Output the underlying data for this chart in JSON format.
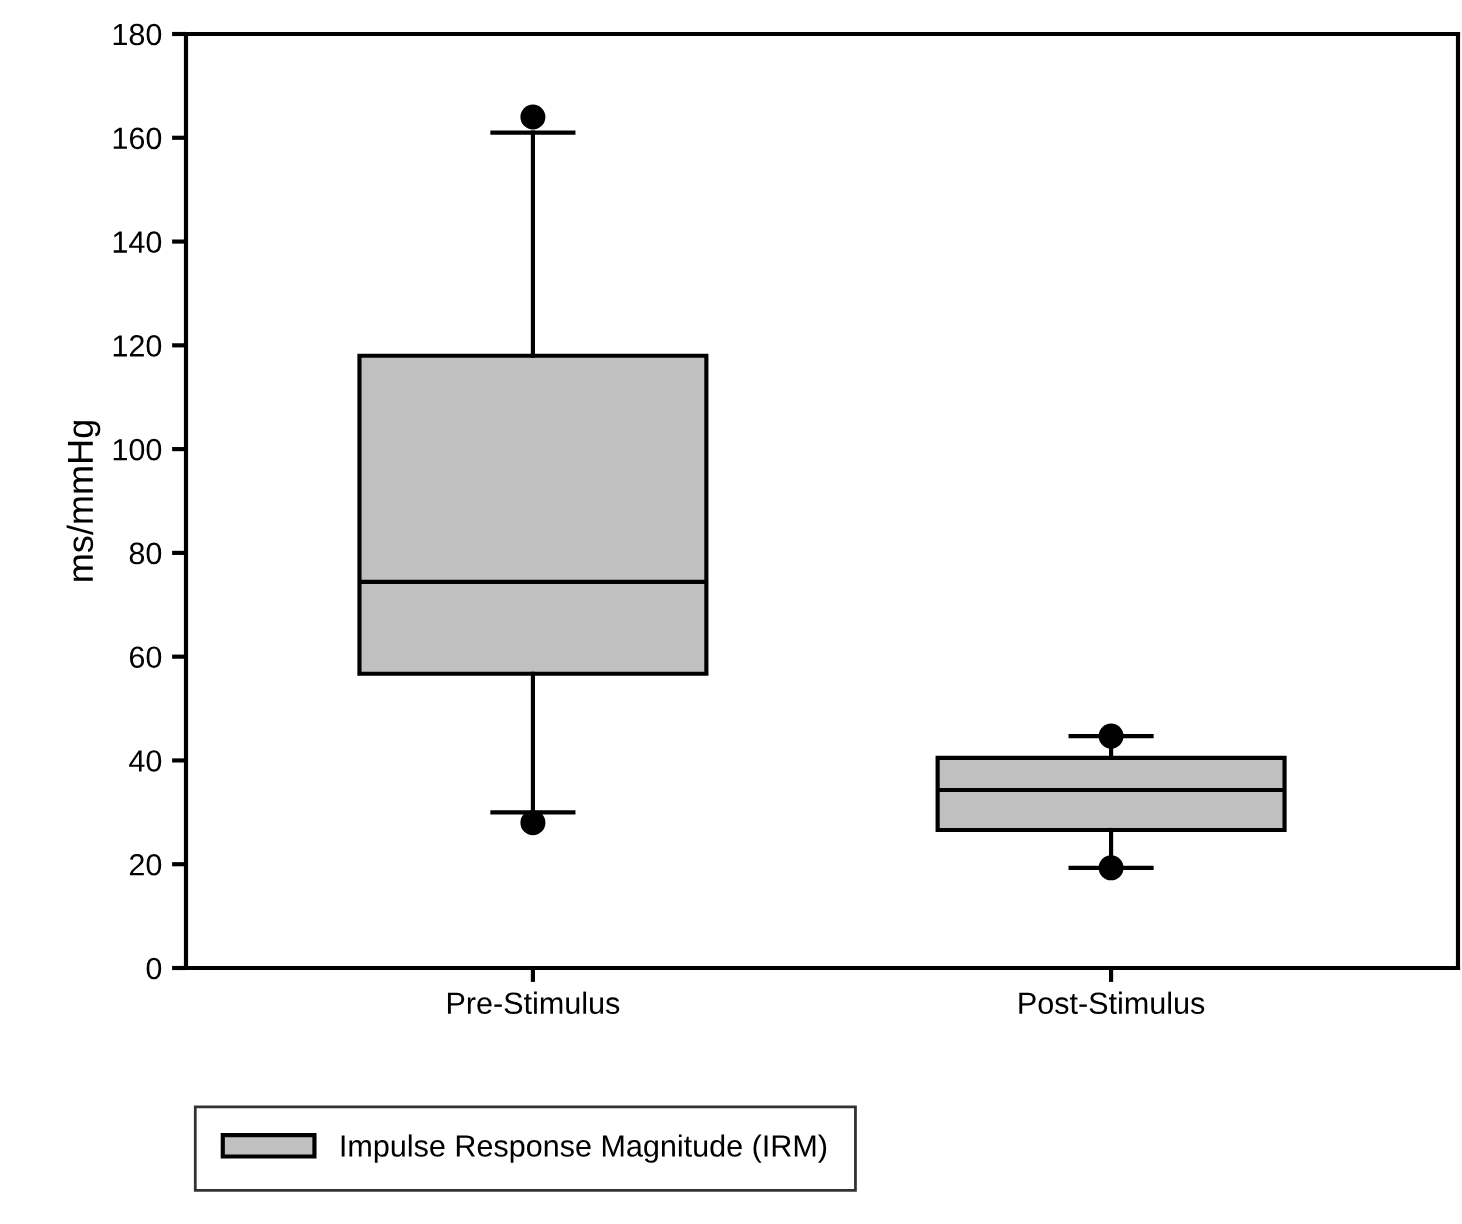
{
  "chart_data": {
    "type": "box",
    "ylabel": "ms/mmHg",
    "categories": [
      "Pre-Stimulus",
      "Post-Stimulus"
    ],
    "series": [
      {
        "name": "Impulse Response Magnitude (IRM)",
        "color": "#c0c0c0",
        "boxes": [
          {
            "low": 30,
            "q1": 56.7,
            "median": 74.4,
            "q3": 118,
            "high": 161,
            "outliers": [
              164,
              28
            ]
          },
          {
            "low": 19.3,
            "q1": 26.6,
            "median": 34.3,
            "q3": 40.5,
            "high": 44.7,
            "outliers": [
              44.7,
              19.3
            ]
          }
        ]
      }
    ],
    "ylim": [
      0,
      180
    ],
    "yticks": [
      0,
      20,
      40,
      60,
      80,
      100,
      120,
      140,
      160,
      180
    ],
    "grid": false,
    "legend": "bottom left"
  }
}
